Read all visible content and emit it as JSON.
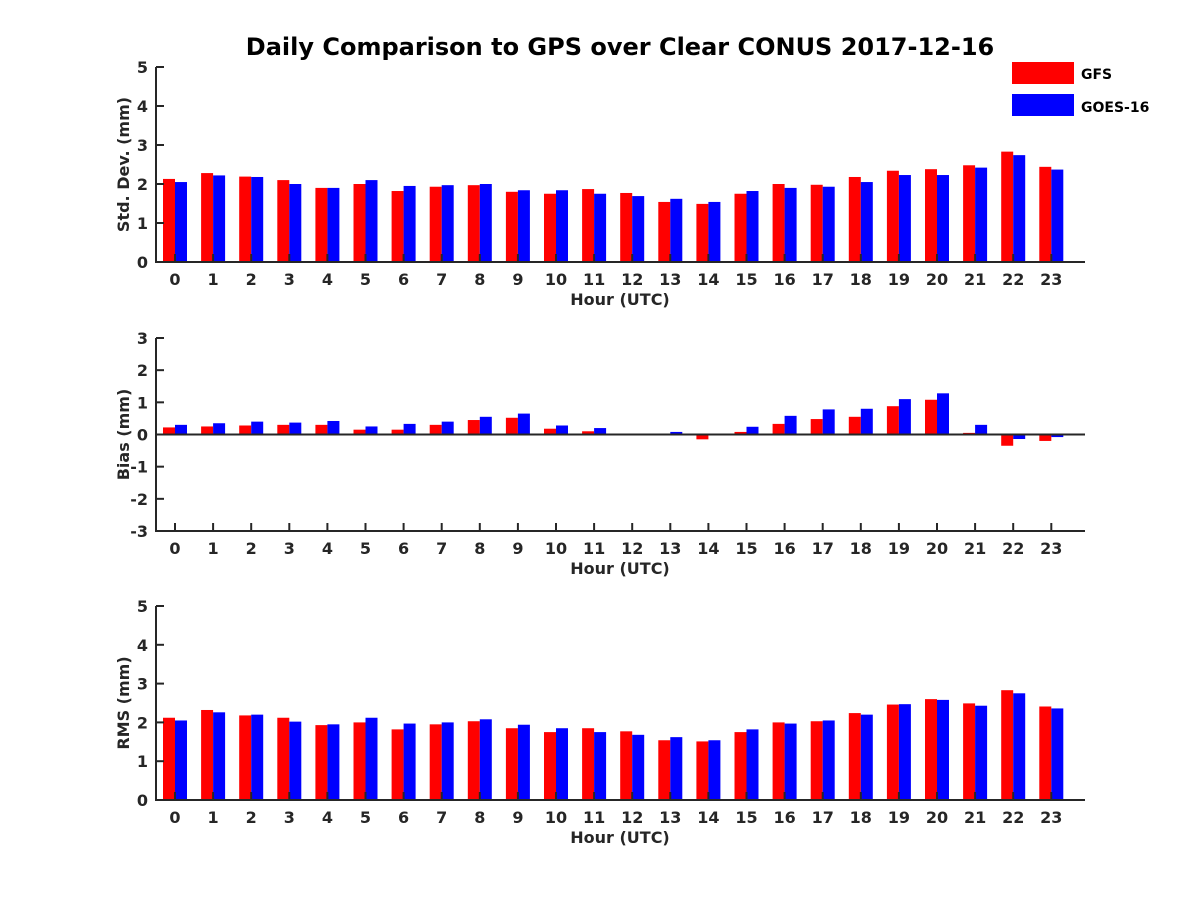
{
  "title": "Daily Comparison to GPS over Clear CONUS 2017-12-16",
  "colors": {
    "gfs": "#ff0000",
    "goes": "#0000ff",
    "axis": "#262626"
  },
  "legend": [
    {
      "name": "GFS",
      "color": "#ff0000"
    },
    {
      "name": "GOES-16",
      "color": "#0000ff"
    }
  ],
  "chart_data": [
    {
      "type": "bar",
      "ylabel": "Std. Dev. (mm)",
      "xlabel": "Hour (UTC)",
      "ylim": [
        0,
        5
      ],
      "yticks": [
        0,
        1,
        2,
        3,
        4,
        5
      ],
      "categories": [
        "0",
        "1",
        "2",
        "3",
        "4",
        "5",
        "6",
        "7",
        "8",
        "9",
        "10",
        "11",
        "12",
        "13",
        "14",
        "15",
        "16",
        "17",
        "18",
        "19",
        "20",
        "21",
        "22",
        "23"
      ],
      "series": [
        {
          "name": "GFS",
          "values": [
            2.13,
            2.28,
            2.19,
            2.1,
            1.9,
            2.0,
            1.82,
            1.93,
            1.97,
            1.8,
            1.75,
            1.87,
            1.77,
            1.54,
            1.49,
            1.75,
            2.0,
            1.98,
            2.18,
            2.34,
            2.38,
            2.48,
            2.83,
            2.44
          ]
        },
        {
          "name": "GOES-16",
          "values": [
            2.05,
            2.22,
            2.18,
            2.0,
            1.9,
            2.1,
            1.95,
            1.97,
            2.0,
            1.84,
            1.84,
            1.75,
            1.69,
            1.62,
            1.54,
            1.82,
            1.9,
            1.93,
            2.05,
            2.23,
            2.23,
            2.42,
            2.74,
            2.37
          ]
        }
      ]
    },
    {
      "type": "bar",
      "ylabel": "Bias (mm)",
      "xlabel": "Hour (UTC)",
      "ylim": [
        -3,
        3
      ],
      "yticks": [
        -3,
        -2,
        -1,
        0,
        1,
        2,
        3
      ],
      "categories": [
        "0",
        "1",
        "2",
        "3",
        "4",
        "5",
        "6",
        "7",
        "8",
        "9",
        "10",
        "11",
        "12",
        "13",
        "14",
        "15",
        "16",
        "17",
        "18",
        "19",
        "20",
        "21",
        "22",
        "23"
      ],
      "series": [
        {
          "name": "GFS",
          "values": [
            0.22,
            0.25,
            0.28,
            0.3,
            0.3,
            0.15,
            0.15,
            0.3,
            0.45,
            0.52,
            0.18,
            0.1,
            -0.03,
            0.0,
            -0.15,
            0.08,
            0.33,
            0.48,
            0.55,
            0.88,
            1.08,
            0.05,
            -0.35,
            -0.2
          ]
        },
        {
          "name": "GOES-16",
          "values": [
            0.3,
            0.35,
            0.4,
            0.37,
            0.42,
            0.25,
            0.33,
            0.4,
            0.55,
            0.65,
            0.28,
            0.2,
            0.03,
            0.08,
            -0.02,
            0.24,
            0.58,
            0.78,
            0.8,
            1.1,
            1.28,
            0.3,
            -0.14,
            -0.08
          ]
        }
      ]
    },
    {
      "type": "bar",
      "ylabel": "RMS (mm)",
      "xlabel": "Hour (UTC)",
      "ylim": [
        0,
        5
      ],
      "yticks": [
        0,
        1,
        2,
        3,
        4,
        5
      ],
      "categories": [
        "0",
        "1",
        "2",
        "3",
        "4",
        "5",
        "6",
        "7",
        "8",
        "9",
        "10",
        "11",
        "12",
        "13",
        "14",
        "15",
        "16",
        "17",
        "18",
        "19",
        "20",
        "21",
        "22",
        "23"
      ],
      "series": [
        {
          "name": "GFS",
          "values": [
            2.12,
            2.32,
            2.18,
            2.12,
            1.93,
            2.0,
            1.82,
            1.95,
            2.03,
            1.85,
            1.75,
            1.85,
            1.77,
            1.54,
            1.51,
            1.75,
            2.0,
            2.03,
            2.24,
            2.46,
            2.6,
            2.49,
            2.83,
            2.41
          ]
        },
        {
          "name": "GOES-16",
          "values": [
            2.05,
            2.26,
            2.2,
            2.02,
            1.95,
            2.12,
            1.97,
            2.0,
            2.08,
            1.94,
            1.85,
            1.75,
            1.68,
            1.62,
            1.54,
            1.82,
            1.97,
            2.05,
            2.2,
            2.47,
            2.58,
            2.43,
            2.75,
            2.36
          ]
        }
      ]
    }
  ]
}
